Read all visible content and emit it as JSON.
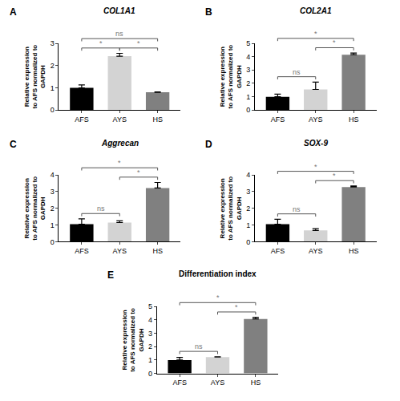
{
  "chart_data": [
    {
      "panel": "A",
      "type": "bar",
      "title": "COL1A1",
      "categories": [
        "AFS",
        "AYS",
        "HS"
      ],
      "values": [
        1.0,
        2.42,
        0.8
      ],
      "error": [
        0.13,
        0.13,
        0.02
      ],
      "colors": [
        "#000000",
        "#d3d3d3",
        "#808080"
      ],
      "ylim": [
        0,
        3
      ],
      "yticks": [
        0,
        1,
        2,
        3
      ],
      "y_label": "Relative expression to AFS normalized to GAPDH",
      "annotations": [
        {
          "text": "*",
          "between": [
            "AFS",
            "AYS"
          ]
        },
        {
          "text": "*",
          "between": [
            "AYS",
            "HS"
          ]
        },
        {
          "text": "ns",
          "between": [
            "AFS",
            "HS"
          ]
        }
      ]
    },
    {
      "panel": "B",
      "type": "bar",
      "title": "COL2A1",
      "categories": [
        "AFS",
        "AYS",
        "HS"
      ],
      "values": [
        1.0,
        1.55,
        4.15
      ],
      "error": [
        0.2,
        0.55,
        0.12
      ],
      "colors": [
        "#000000",
        "#d3d3d3",
        "#808080"
      ],
      "ylim": [
        0,
        5
      ],
      "yticks": [
        0,
        1,
        2,
        3,
        4,
        5
      ],
      "y_label": "Relative expression to AFS normalized to GAPDH",
      "annotations": [
        {
          "text": "ns",
          "between": [
            "AFS",
            "AYS"
          ]
        },
        {
          "text": "*",
          "between": [
            "AYS",
            "HS"
          ]
        },
        {
          "text": "*",
          "between": [
            "AFS",
            "HS"
          ]
        }
      ]
    },
    {
      "panel": "C",
      "type": "bar",
      "title": "Aggrecan",
      "categories": [
        "AFS",
        "AYS",
        "HS"
      ],
      "values": [
        1.05,
        1.15,
        3.22
      ],
      "error": [
        0.32,
        0.1,
        0.33
      ],
      "colors": [
        "#000000",
        "#d3d3d3",
        "#808080"
      ],
      "ylim": [
        0,
        4
      ],
      "yticks": [
        0,
        1,
        2,
        3,
        4
      ],
      "y_label": "Relative expression to AFS normalized to GAPDH",
      "annotations": [
        {
          "text": "ns",
          "between": [
            "AFS",
            "AYS"
          ]
        },
        {
          "text": "*",
          "between": [
            "AYS",
            "HS"
          ]
        },
        {
          "text": "*",
          "between": [
            "AFS",
            "HS"
          ]
        }
      ]
    },
    {
      "panel": "D",
      "type": "bar",
      "title": "SOX-9",
      "categories": [
        "AFS",
        "AYS",
        "HS"
      ],
      "values": [
        1.05,
        0.68,
        3.28
      ],
      "error": [
        0.3,
        0.1,
        0.06
      ],
      "colors": [
        "#000000",
        "#d3d3d3",
        "#808080"
      ],
      "ylim": [
        0,
        4
      ],
      "yticks": [
        0,
        1,
        2,
        3,
        4
      ],
      "y_label": "Relative expression to AFS normalized to GAPDH",
      "annotations": [
        {
          "text": "ns",
          "between": [
            "AFS",
            "AYS"
          ]
        },
        {
          "text": "*",
          "between": [
            "AYS",
            "HS"
          ]
        },
        {
          "text": "*",
          "between": [
            "AFS",
            "HS"
          ]
        }
      ]
    },
    {
      "panel": "E",
      "type": "bar",
      "title": "Differentiation index",
      "categories": [
        "AFS",
        "AYS",
        "HS"
      ],
      "values": [
        1.0,
        1.22,
        4.08
      ],
      "error": [
        0.2,
        0.03,
        0.12
      ],
      "colors": [
        "#000000",
        "#d3d3d3",
        "#808080"
      ],
      "ylim": [
        0,
        5
      ],
      "yticks": [
        0,
        1,
        2,
        3,
        4,
        5
      ],
      "y_label": "Relative expression to AFS normalized to GAPDH",
      "annotations": [
        {
          "text": "ns",
          "between": [
            "AFS",
            "AYS"
          ]
        },
        {
          "text": "*",
          "between": [
            "AYS",
            "HS"
          ]
        },
        {
          "text": "*",
          "between": [
            "AFS",
            "HS"
          ]
        }
      ]
    }
  ]
}
